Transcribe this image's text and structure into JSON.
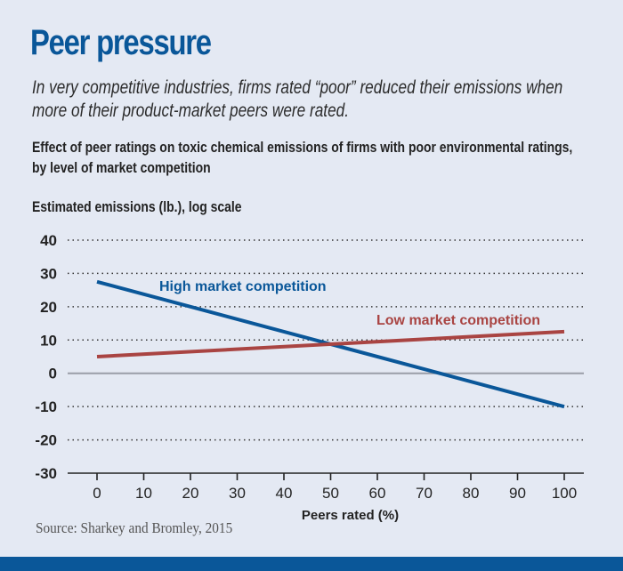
{
  "header": {
    "title": "Peer pressure",
    "subtitle": "In very competitive industries, firms rated “poor” reduced their emissions when more of their product-market peers were rated."
  },
  "source": "Source: Sharkey and Bromley, 2015",
  "colors": {
    "background": "#e4e9f3",
    "brand": "#0a5799",
    "high_series": "#0a5799",
    "low_series": "#a94442",
    "zero_line": "#9a9ea8",
    "grid": "#333333"
  },
  "chart_data": {
    "type": "line",
    "title": "Effect of peer ratings on toxic chemical emissions of firms with poor environmental ratings, by level of market competition",
    "ylabel": "Estimated emissions (lb.), log scale",
    "xlabel": "Peers rated (%)",
    "xlim": [
      0,
      100
    ],
    "ylim": [
      -30,
      40
    ],
    "x_ticks": [
      0,
      10,
      20,
      30,
      40,
      50,
      60,
      70,
      80,
      90,
      100
    ],
    "y_ticks": [
      40,
      30,
      20,
      10,
      0,
      -10,
      -20,
      -30
    ],
    "grid": "horizontal-dotted",
    "series": [
      {
        "name": "High market competition",
        "color": "#0a5799",
        "x": [
          0,
          100
        ],
        "y": [
          27.5,
          -10
        ]
      },
      {
        "name": "Low market competition",
        "color": "#a94442",
        "x": [
          0,
          100
        ],
        "y": [
          5,
          12.5
        ]
      }
    ]
  }
}
